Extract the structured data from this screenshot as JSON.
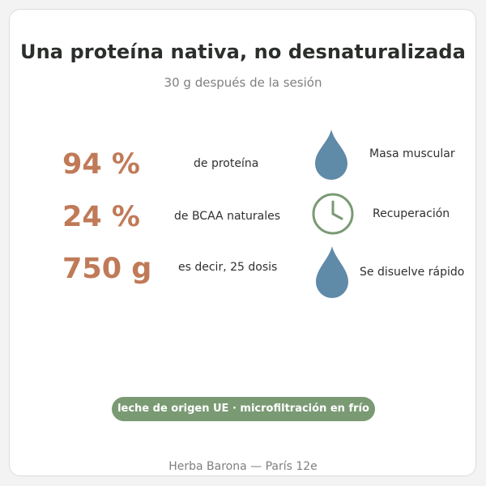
{
  "header": {
    "title": "Una proteína nativa, no desnaturalizada",
    "subtitle": "30 g después de la sesión"
  },
  "stats": [
    {
      "value": "94 %",
      "label": "de proteína"
    },
    {
      "value": "24 %",
      "label": "de BCAA naturales"
    },
    {
      "value": "750 g",
      "label": "es decir, 25 dosis"
    }
  ],
  "benefits": [
    {
      "icon": "drop-icon",
      "label": "Masa muscular"
    },
    {
      "icon": "clock-icon",
      "label": "Recuperación"
    },
    {
      "icon": "drop-icon",
      "label": "Se disuelve rápido"
    }
  ],
  "badge": {
    "text": "leche de origen UE · microfiltración en frío"
  },
  "footer": {
    "text": "Herba Barona — París 12e"
  },
  "colors": {
    "accent": "#c07a58",
    "drop": "#5f8aa8",
    "clock": "#7a9a74",
    "badge": "#7a9a74"
  }
}
